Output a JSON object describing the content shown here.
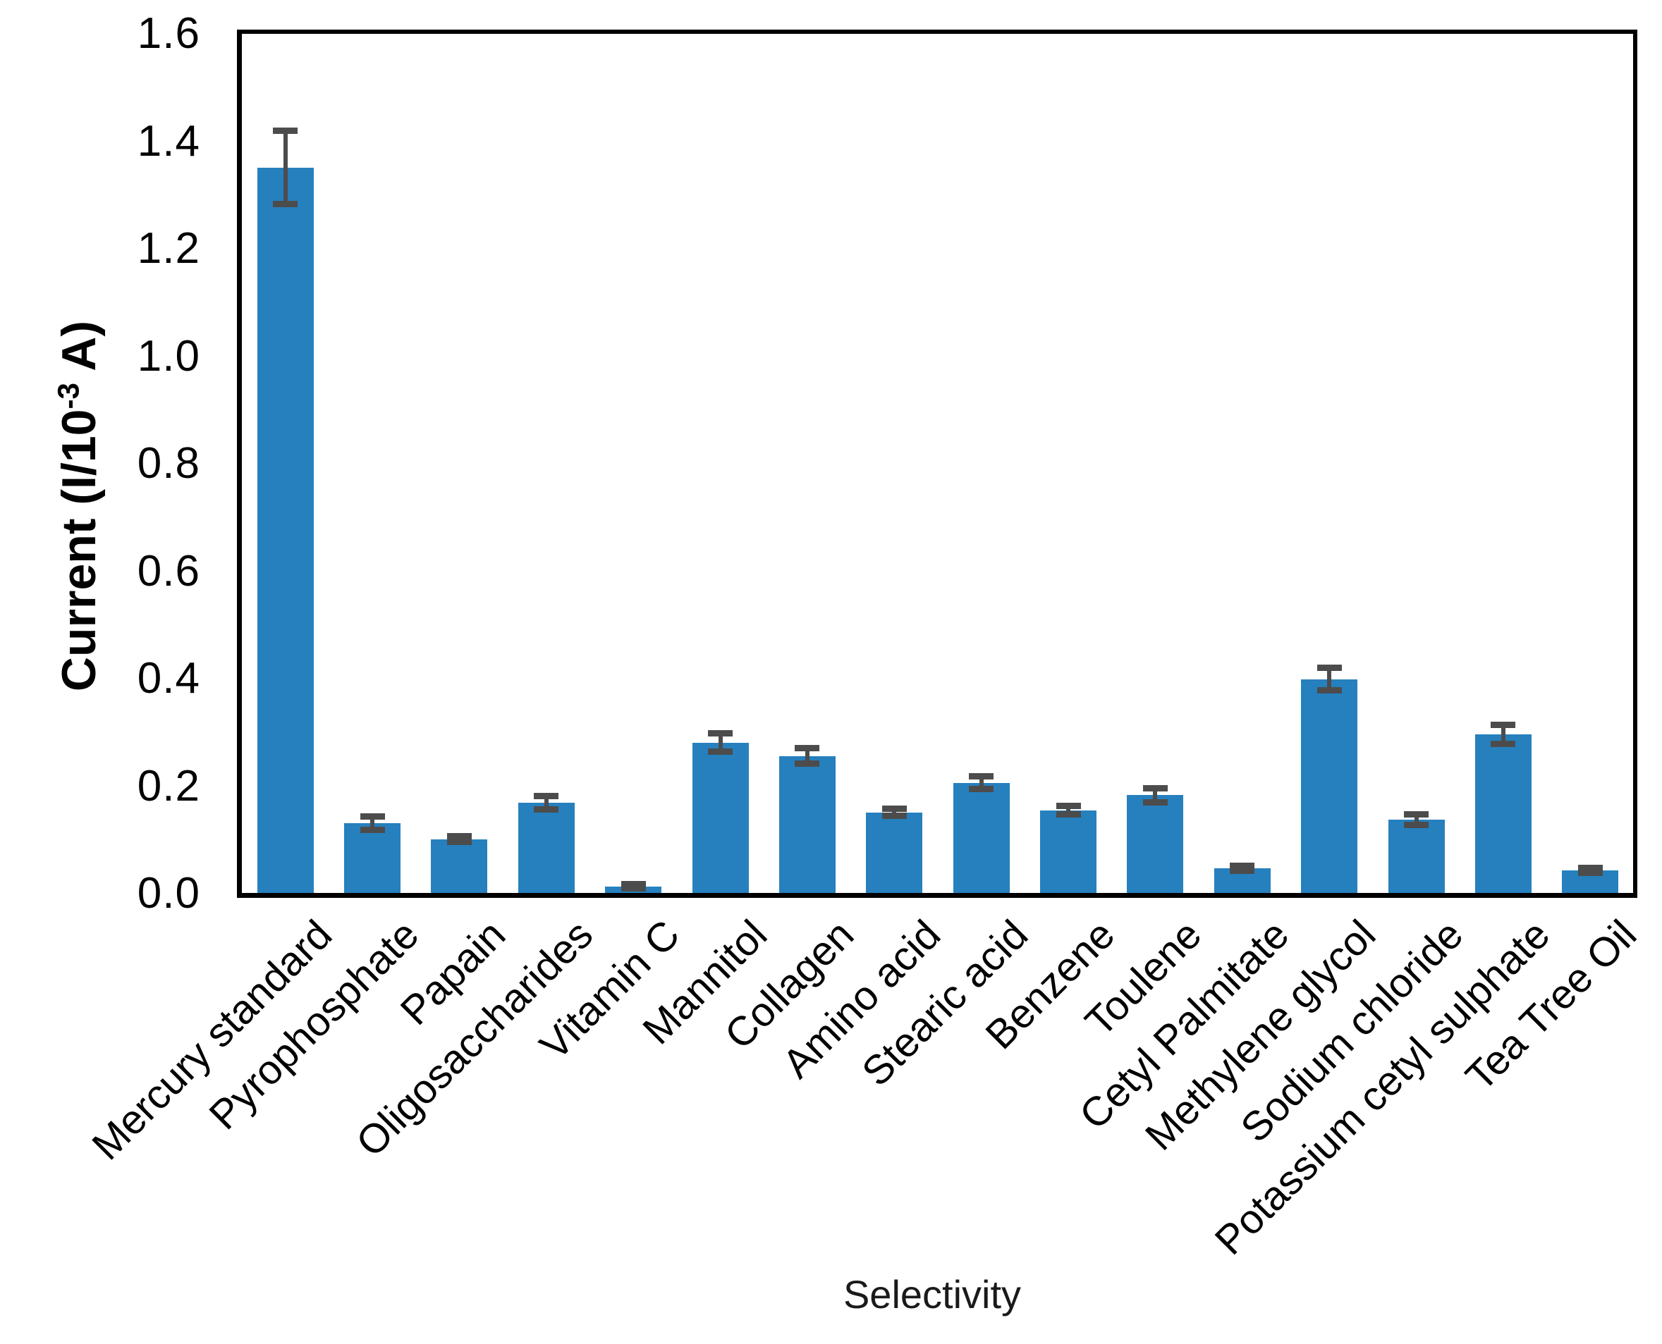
{
  "axes": {
    "y_title_prefix": "Current (I/10",
    "y_title_sup": "-3",
    "y_title_suffix": " A)",
    "x_title": "Selectivity"
  },
  "chart_data": {
    "type": "bar",
    "title": "",
    "xlabel": "Selectivity",
    "ylabel": "Current (I/10^-3 A)",
    "ylim": [
      0,
      1.6
    ],
    "ytick_labels": [
      "0.0",
      "0.2",
      "0.4",
      "0.6",
      "0.8",
      "1.0",
      "1.2",
      "1.4",
      "1.6"
    ],
    "grid": false,
    "legend": null,
    "bar_color": "#2680BE",
    "error_bar_color": "#4C4C4C",
    "categories": [
      "Mercury standard",
      "Pyrophosphate",
      "Papain",
      "Oligosaccharides",
      "Vitamin C",
      "Mannitol",
      "Collagen",
      "Amino acid",
      "Stearic acid",
      "Benzene",
      "Toulene",
      "Cetyl Palmitate",
      "Methylene glycol",
      "Sodium chloride",
      "Potassium cetyl sulphate",
      "Tea Tree Oil"
    ],
    "values": [
      1.35,
      0.13,
      0.1,
      0.168,
      0.012,
      0.28,
      0.255,
      0.15,
      0.205,
      0.154,
      0.182,
      0.046,
      0.398,
      0.136,
      0.295,
      0.042
    ],
    "errors": [
      0.068,
      0.012,
      0.005,
      0.013,
      0.004,
      0.017,
      0.014,
      0.007,
      0.012,
      0.008,
      0.013,
      0.005,
      0.021,
      0.01,
      0.018,
      0.005
    ]
  }
}
